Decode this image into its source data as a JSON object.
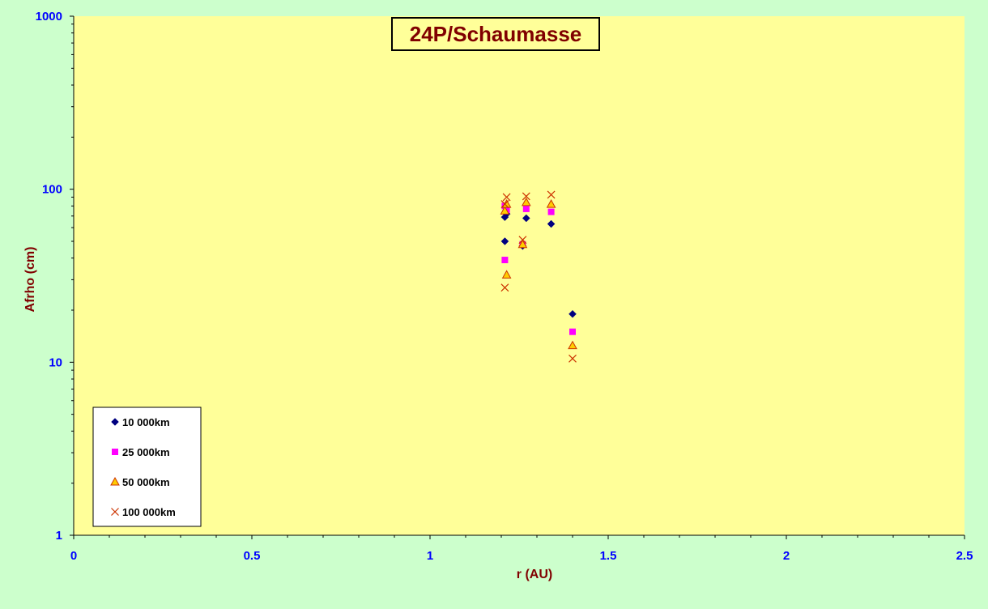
{
  "chart_data": {
    "type": "scatter",
    "title": "24P/Schaumasse",
    "xlabel": "r (AU)",
    "ylabel": "Afrho (cm)",
    "xlim": [
      0,
      2.5
    ],
    "ylim": [
      1,
      1000
    ],
    "y_scale": "log",
    "x_ticks": [
      "0",
      "0.5",
      "1",
      "1.5",
      "2",
      "2.5"
    ],
    "x_tick_values": [
      0,
      0.5,
      1,
      1.5,
      2,
      2.5
    ],
    "y_ticks": [
      "1",
      "10",
      "100",
      "1000"
    ],
    "y_tick_values": [
      1,
      10,
      100,
      1000
    ],
    "grid": false,
    "legend_position": "bottom-left",
    "colors": {
      "outer_background": "#ccffcc",
      "plot_background": "#ffff99",
      "title_color": "#800000",
      "axis_label_color": "#800000",
      "tick_label_color": "#0000ff"
    },
    "series": [
      {
        "name": "10 000km",
        "marker": "diamond",
        "color": "#000080",
        "x": [
          1.21,
          1.215,
          1.21,
          1.26,
          1.27,
          1.34,
          1.4
        ],
        "y": [
          69,
          72,
          50,
          47,
          68,
          63,
          19
        ]
      },
      {
        "name": "25 000km",
        "marker": "square",
        "color": "#ff00ff",
        "x": [
          1.21,
          1.215,
          1.21,
          1.26,
          1.27,
          1.34,
          1.4
        ],
        "y": [
          80,
          76,
          39,
          48,
          77,
          74,
          15
        ]
      },
      {
        "name": "50 000km",
        "marker": "triangle",
        "color": "#ffcc00",
        "edge": "#cc3300",
        "x": [
          1.21,
          1.215,
          1.215,
          1.26,
          1.27,
          1.34,
          1.4
        ],
        "y": [
          75,
          82,
          32,
          48,
          84,
          82,
          12.5
        ]
      },
      {
        "name": "100 000km",
        "marker": "x",
        "color": "#cc3300",
        "x": [
          1.21,
          1.215,
          1.21,
          1.26,
          1.27,
          1.34,
          1.4
        ],
        "y": [
          82,
          90,
          27,
          51,
          91,
          93,
          10.5
        ]
      }
    ]
  }
}
